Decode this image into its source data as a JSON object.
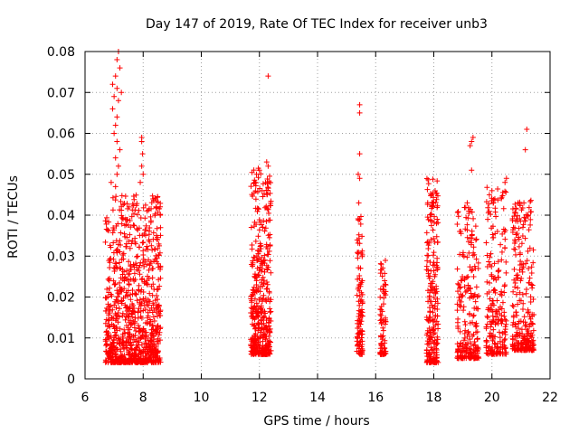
{
  "chart_data": {
    "type": "scatter",
    "title": "Day 147 of 2019, Rate Of TEC Index for receiver unb3",
    "xlabel": "GPS time / hours",
    "ylabel": "ROTI / TECUs",
    "xlim": [
      6,
      22
    ],
    "ylim": [
      0,
      0.08
    ],
    "xticks": [
      "6",
      "8",
      "10",
      "12",
      "14",
      "16",
      "18",
      "20",
      "22"
    ],
    "yticks": [
      "0",
      "0.01",
      "0.02",
      "0.03",
      "0.04",
      "0.05",
      "0.06",
      "0.07",
      "0.08"
    ],
    "grid": true,
    "marker": "+",
    "color": "#ff0000",
    "clusters": [
      {
        "x_start": 6.7,
        "x_end": 8.6,
        "y_min": 0.004,
        "y_max": 0.045,
        "count": 900
      },
      {
        "x_start": 11.7,
        "x_end": 12.4,
        "y_min": 0.006,
        "y_max": 0.052,
        "count": 420
      },
      {
        "x_start": 15.35,
        "x_end": 15.55,
        "y_min": 0.006,
        "y_max": 0.04,
        "count": 110
      },
      {
        "x_start": 16.15,
        "x_end": 16.35,
        "y_min": 0.006,
        "y_max": 0.029,
        "count": 80
      },
      {
        "x_start": 17.75,
        "x_end": 18.15,
        "y_min": 0.004,
        "y_max": 0.049,
        "count": 240
      },
      {
        "x_start": 18.8,
        "x_end": 19.55,
        "y_min": 0.005,
        "y_max": 0.042,
        "count": 230
      },
      {
        "x_start": 19.8,
        "x_end": 20.5,
        "y_min": 0.006,
        "y_max": 0.047,
        "count": 210
      },
      {
        "x_start": 20.7,
        "x_end": 21.45,
        "y_min": 0.007,
        "y_max": 0.044,
        "count": 260
      }
    ],
    "outliers": [
      {
        "x": 7.15,
        "y": 0.08
      },
      {
        "x": 7.1,
        "y": 0.078
      },
      {
        "x": 7.2,
        "y": 0.076
      },
      {
        "x": 7.05,
        "y": 0.074
      },
      {
        "x": 6.95,
        "y": 0.072
      },
      {
        "x": 7.1,
        "y": 0.071
      },
      {
        "x": 7.25,
        "y": 0.07
      },
      {
        "x": 7.0,
        "y": 0.069
      },
      {
        "x": 7.15,
        "y": 0.068
      },
      {
        "x": 6.95,
        "y": 0.066
      },
      {
        "x": 7.1,
        "y": 0.064
      },
      {
        "x": 7.05,
        "y": 0.062
      },
      {
        "x": 7.0,
        "y": 0.06
      },
      {
        "x": 7.1,
        "y": 0.058
      },
      {
        "x": 7.2,
        "y": 0.056
      },
      {
        "x": 7.05,
        "y": 0.054
      },
      {
        "x": 7.15,
        "y": 0.052
      },
      {
        "x": 7.1,
        "y": 0.05
      },
      {
        "x": 6.9,
        "y": 0.048
      },
      {
        "x": 7.05,
        "y": 0.047
      },
      {
        "x": 7.95,
        "y": 0.059
      },
      {
        "x": 7.95,
        "y": 0.058
      },
      {
        "x": 7.98,
        "y": 0.055
      },
      {
        "x": 7.95,
        "y": 0.052
      },
      {
        "x": 8.0,
        "y": 0.05
      },
      {
        "x": 7.9,
        "y": 0.048
      },
      {
        "x": 12.3,
        "y": 0.074
      },
      {
        "x": 12.25,
        "y": 0.053
      },
      {
        "x": 12.3,
        "y": 0.052
      },
      {
        "x": 12.0,
        "y": 0.051
      },
      {
        "x": 11.9,
        "y": 0.05
      },
      {
        "x": 15.45,
        "y": 0.067
      },
      {
        "x": 15.45,
        "y": 0.065
      },
      {
        "x": 15.45,
        "y": 0.055
      },
      {
        "x": 15.4,
        "y": 0.05
      },
      {
        "x": 15.45,
        "y": 0.049
      },
      {
        "x": 15.42,
        "y": 0.043
      },
      {
        "x": 19.3,
        "y": 0.058
      },
      {
        "x": 19.35,
        "y": 0.059
      },
      {
        "x": 19.25,
        "y": 0.057
      },
      {
        "x": 19.3,
        "y": 0.051
      },
      {
        "x": 19.15,
        "y": 0.043
      },
      {
        "x": 21.2,
        "y": 0.061
      },
      {
        "x": 21.15,
        "y": 0.056
      },
      {
        "x": 20.5,
        "y": 0.049
      },
      {
        "x": 20.45,
        "y": 0.048
      },
      {
        "x": 20.0,
        "y": 0.046
      },
      {
        "x": 21.1,
        "y": 0.043
      },
      {
        "x": 20.1,
        "y": 0.044
      }
    ]
  }
}
